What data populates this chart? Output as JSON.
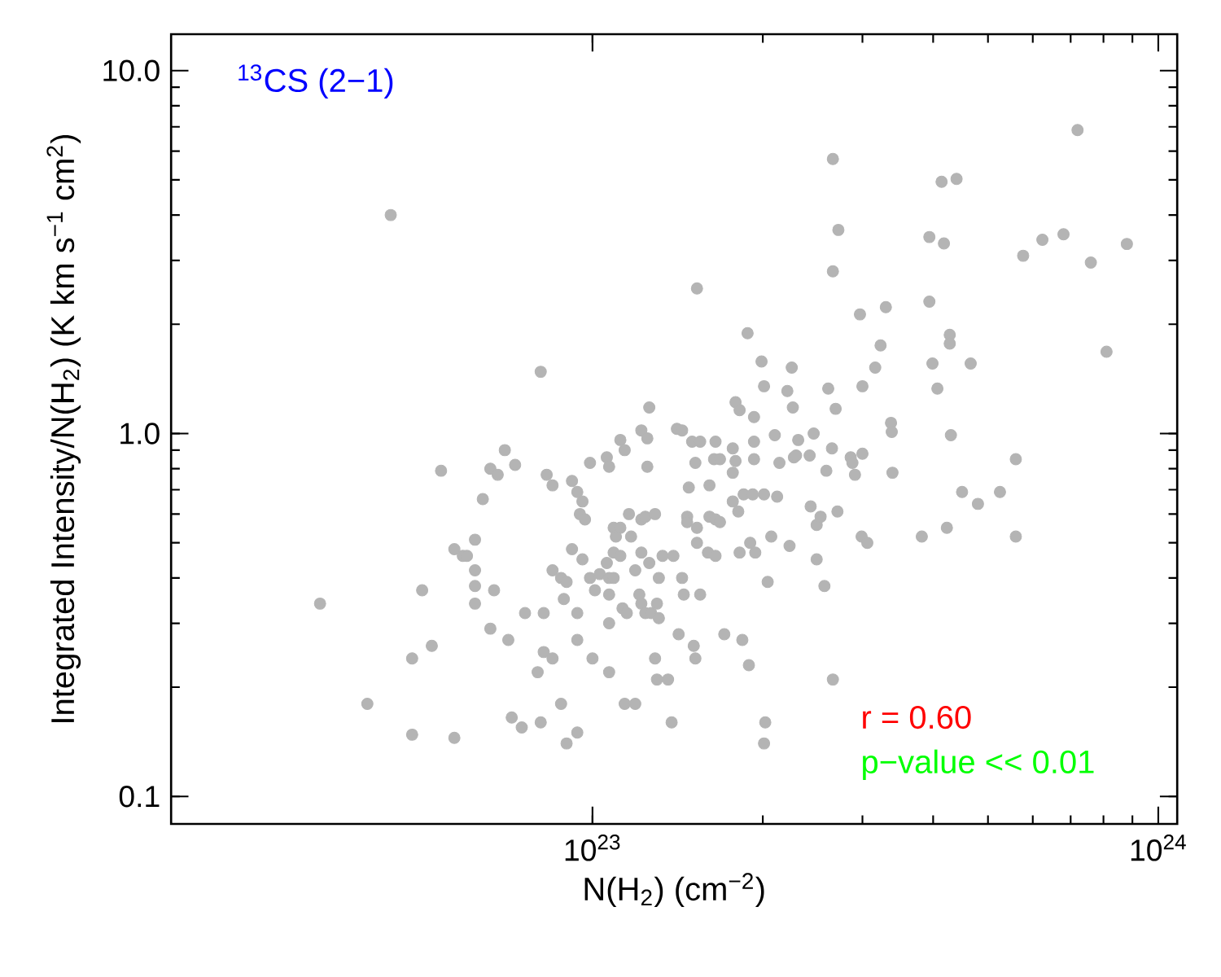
{
  "chart_data": {
    "type": "scatter",
    "title": "$^{13}$CS (2−1)",
    "xlabel": "N(H$_{2}$) (cm$^{−2}$)",
    "ylabel": "Integrated Intensity/N(H$_{2}$) (K km s$^{−1}$ cm$^{2}$)",
    "annotations": [
      "r = 0.60",
      "p−value << 0.01"
    ],
    "log": "xy",
    "marker": "circle",
    "xlim": [
      1.8e+22,
      1.08e+24
    ],
    "ylim": [
      0.084,
      12.6
    ],
    "xticks": [
      {
        "value": 1e+23,
        "label": "10$^{23}$"
      },
      {
        "value": 1e+24,
        "label": "10$^{24}$"
      }
    ],
    "yticks": [
      {
        "value": 0.1,
        "label": "0.1"
      },
      {
        "value": 1,
        "label": "1.0"
      },
      {
        "value": 10,
        "label": "10.0"
      }
    ],
    "series": [
      {
        "color": "#b4b4b4",
        "x": [
          4.4e+22,
          3.3e+22,
          4e+22,
          4.8e+22,
          4.8e+22,
          5e+22,
          5.2e+22,
          5.7e+22,
          5.4e+22,
          5.7e+22,
          5.9e+22,
          6e+22,
          6.2e+22,
          6.2e+22,
          6.2e+22,
          6.2e+22,
          6.4e+22,
          6.6e+22,
          6.8e+22,
          6.7e+22,
          6.6e+22,
          7e+22,
          7.3e+22,
          7.1e+22,
          7.2e+22,
          7.5e+22,
          7.6e+22,
          8.1e+22,
          8.2e+22,
          8.2e+22,
          8.5e+22,
          8e+22,
          8.1e+22,
          8.3e+22,
          8.5e+22,
          8.5e+22,
          8.8e+22,
          9e+22,
          8.8e+22,
          9e+22,
          8.9e+22,
          9.2e+22,
          9.4e+22,
          9.6e+22,
          9.5e+22,
          9.7e+22,
          9.2e+22,
          9.6e+22,
          9.4e+22,
          9.4e+22,
          9.4e+22,
          9.9e+22,
          1e+23,
          1.01e+23,
          1.03e+23,
          1.06e+23,
          1.07e+23,
          1.09e+23,
          1.07e+23,
          9.9e+22,
          1.06e+23,
          1.07e+23,
          1.12e+23,
          1.14e+23,
          1.09e+23,
          1.1e+23,
          1.12e+23,
          1.09e+23,
          1.12e+23,
          1.07e+23,
          1.07e+23,
          1.14e+23,
          1.19e+23,
          1.13e+23,
          1.15e+23,
          1.16e+23,
          1.17e+23,
          1.19e+23,
          1.22e+23,
          1.21e+23,
          1.22e+23,
          1.22e+23,
          1.24e+23,
          1.29e+23,
          1.26e+23,
          1.25e+23,
          1.22e+23,
          1.25e+23,
          1.26e+23,
          1.24e+23,
          1.27e+23,
          1.31e+23,
          1.3e+23,
          1.31e+23,
          1.29e+23,
          1.3e+23,
          1.36e+23,
          1.38e+23,
          1.33e+23,
          1.39e+23,
          1.41e+23,
          1.44e+23,
          1.5e+23,
          1.55e+23,
          1.52e+23,
          1.48e+23,
          1.47e+23,
          1.47e+23,
          1.53e+23,
          1.53e+23,
          1.44e+23,
          1.45e+23,
          1.55e+23,
          1.42e+23,
          1.51e+23,
          1.52e+23,
          1.53e+23,
          1.61e+23,
          1.64e+23,
          1.65e+23,
          1.68e+23,
          1.61e+23,
          1.65e+23,
          1.68e+23,
          1.6e+23,
          1.65e+23,
          1.71e+23,
          1.77e+23,
          1.79e+23,
          1.77e+23,
          1.79e+23,
          1.82e+23,
          1.77e+23,
          1.81e+23,
          1.85e+23,
          1.82e+23,
          1.9e+23,
          1.84e+23,
          1.89e+23,
          1.88e+23,
          1.93e+23,
          1.93e+23,
          1.93e+23,
          1.94e+23,
          1.92e+23,
          2.01e+23,
          1.99e+23,
          2.01e+23,
          2.04e+23,
          2.02e+23,
          2.01e+23,
          2.1e+23,
          2.12e+23,
          2.07e+23,
          2.14e+23,
          2.21e+23,
          2.25e+23,
          2.26e+23,
          2.23e+23,
          2.27e+23,
          2.31e+23,
          2.29e+23,
          2.42e+23,
          2.46e+23,
          2.43e+23,
          2.49e+23,
          2.49e+23,
          2.53e+23,
          2.57e+23,
          2.66e+23,
          2.59e+23,
          2.65e+23,
          2.71e+23,
          2.69e+23,
          2.61e+23,
          2.66e+23,
          2.72e+23,
          2.66e+23,
          2.86e+23,
          2.88e+23,
          2.91e+23,
          2.97e+23,
          3e+23,
          3e+23,
          2.99e+23,
          3.06e+23,
          3.16e+23,
          3.23e+23,
          3.3e+23,
          3.37e+23,
          3.38e+23,
          3.39e+23,
          3.82e+23,
          3.94e+23,
          3.94e+23,
          3.99e+23,
          4.07e+23,
          4.14e+23,
          4.18e+23,
          4.28e+23,
          4.28e+23,
          4.3e+23,
          4.4e+23,
          4.23e+23,
          4.5e+23,
          4.66e+23,
          4.8e+23,
          5.25e+23,
          5.6e+23,
          5.6e+23,
          5.77e+23,
          6.24e+23,
          6.8e+23,
          7.2e+23,
          7.6e+23,
          8.1e+23,
          8.8e+23
        ],
        "values": [
          4.0,
          0.34,
          0.18,
          0.148,
          0.24,
          0.37,
          0.26,
          0.145,
          0.79,
          0.48,
          0.46,
          0.46,
          0.51,
          0.42,
          0.38,
          0.34,
          0.66,
          0.8,
          0.77,
          0.37,
          0.29,
          0.9,
          0.82,
          0.27,
          0.165,
          0.155,
          0.32,
          1.48,
          0.32,
          0.25,
          0.24,
          0.22,
          0.16,
          0.77,
          0.72,
          0.42,
          0.4,
          0.39,
          0.18,
          0.14,
          0.35,
          0.74,
          0.69,
          0.65,
          0.6,
          0.58,
          0.48,
          0.45,
          0.32,
          0.27,
          0.15,
          0.4,
          0.24,
          0.37,
          0.41,
          0.44,
          0.4,
          0.4,
          0.36,
          0.83,
          0.86,
          0.81,
          0.96,
          0.9,
          0.55,
          0.52,
          0.55,
          0.47,
          0.46,
          0.3,
          0.22,
          0.18,
          0.18,
          0.33,
          0.32,
          0.6,
          0.52,
          0.42,
          0.47,
          0.36,
          0.34,
          0.58,
          0.59,
          0.6,
          0.44,
          0.81,
          1.02,
          0.97,
          1.18,
          0.32,
          0.32,
          0.4,
          0.34,
          0.31,
          0.24,
          0.21,
          0.21,
          0.16,
          0.46,
          0.46,
          1.03,
          1.02,
          0.95,
          0.95,
          0.83,
          0.71,
          0.59,
          0.57,
          0.55,
          0.5,
          0.4,
          0.36,
          0.36,
          0.28,
          0.26,
          0.24,
          2.51,
          0.72,
          0.85,
          0.95,
          0.85,
          0.59,
          0.58,
          0.57,
          0.47,
          0.46,
          0.28,
          0.91,
          0.84,
          0.78,
          1.22,
          1.16,
          0.65,
          0.61,
          0.68,
          0.47,
          0.5,
          0.27,
          0.23,
          1.89,
          1.11,
          0.95,
          0.85,
          0.47,
          0.68,
          0.68,
          1.58,
          1.35,
          0.39,
          0.16,
          0.14,
          0.99,
          0.67,
          0.52,
          0.83,
          1.31,
          1.52,
          1.18,
          0.49,
          0.86,
          0.96,
          0.87,
          0.87,
          1.0,
          0.63,
          0.56,
          0.45,
          0.59,
          0.38,
          0.21,
          0.79,
          0.91,
          0.61,
          1.17,
          1.33,
          5.71,
          3.64,
          2.8,
          0.86,
          0.83,
          0.77,
          2.13,
          0.88,
          1.35,
          0.52,
          0.5,
          1.52,
          1.75,
          2.23,
          1.07,
          1.01,
          0.78,
          0.52,
          2.31,
          3.48,
          1.56,
          1.33,
          4.94,
          3.34,
          1.87,
          1.77,
          0.99,
          5.03,
          0.55,
          0.69,
          1.56,
          0.64,
          0.69,
          0.85,
          0.52,
          3.09,
          3.42,
          3.54,
          6.86,
          2.96,
          1.68,
          3.33
        ]
      }
    ]
  }
}
